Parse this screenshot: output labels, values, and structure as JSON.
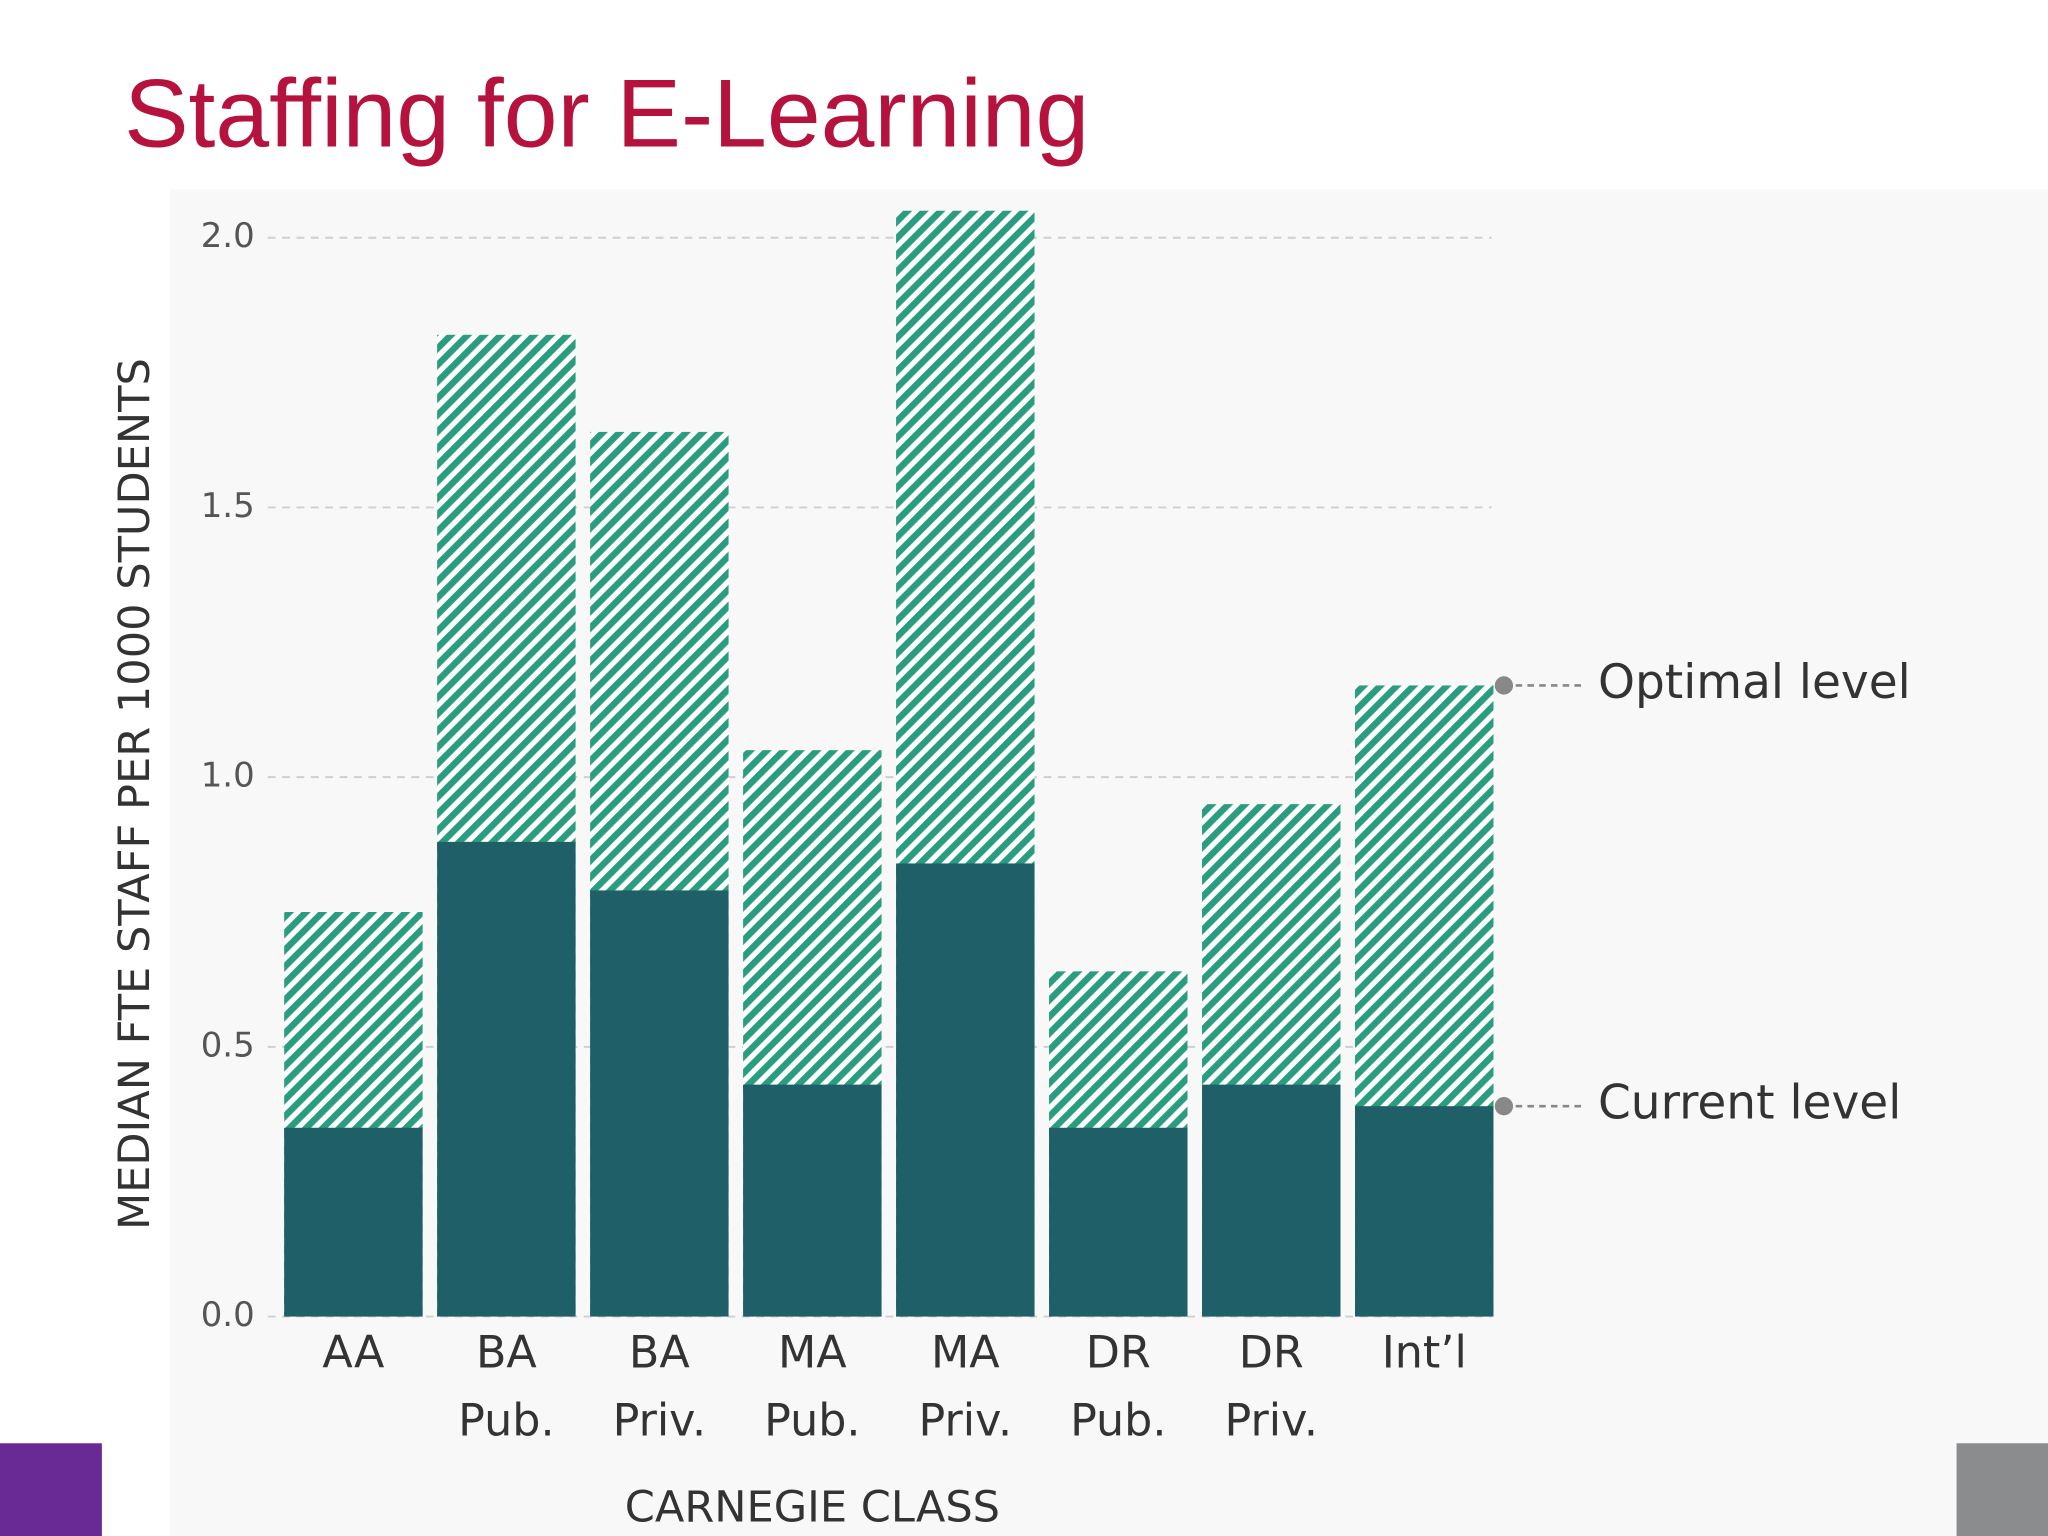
{
  "chart_data": {
    "type": "bar",
    "title": "Staffing for E-Learning",
    "ylabel": "MEDIAN FTE STAFF PER 1000 STUDENTS",
    "xlabel": "CARNEGIE CLASS",
    "categories": [
      [
        "AA"
      ],
      [
        "BA",
        "Pub."
      ],
      [
        "BA",
        "Priv."
      ],
      [
        "MA",
        "Pub."
      ],
      [
        "MA",
        "Priv."
      ],
      [
        "DR",
        "Pub."
      ],
      [
        "DR",
        "Priv."
      ],
      [
        "Int’l"
      ]
    ],
    "series": [
      {
        "name": "Optimal level",
        "color": "#2a9d80",
        "pattern": "hatch",
        "values": [
          0.75,
          1.82,
          1.64,
          1.05,
          2.05,
          0.64,
          0.95,
          1.17
        ]
      },
      {
        "name": "Current level",
        "color": "#1f5f67",
        "values": [
          0.35,
          0.88,
          0.79,
          0.43,
          0.84,
          0.35,
          0.43,
          0.39
        ]
      }
    ],
    "ylim": [
      0,
      2.1
    ],
    "yticks": [
      {
        "value": 0,
        "label": "0.0"
      },
      {
        "value": 0.5,
        "label": "0.5"
      },
      {
        "value": 1,
        "label": "1.0"
      },
      {
        "value": 1.5,
        "label": "1.5"
      },
      {
        "value": 2,
        "label": "2.0"
      }
    ],
    "grid": true
  }
}
